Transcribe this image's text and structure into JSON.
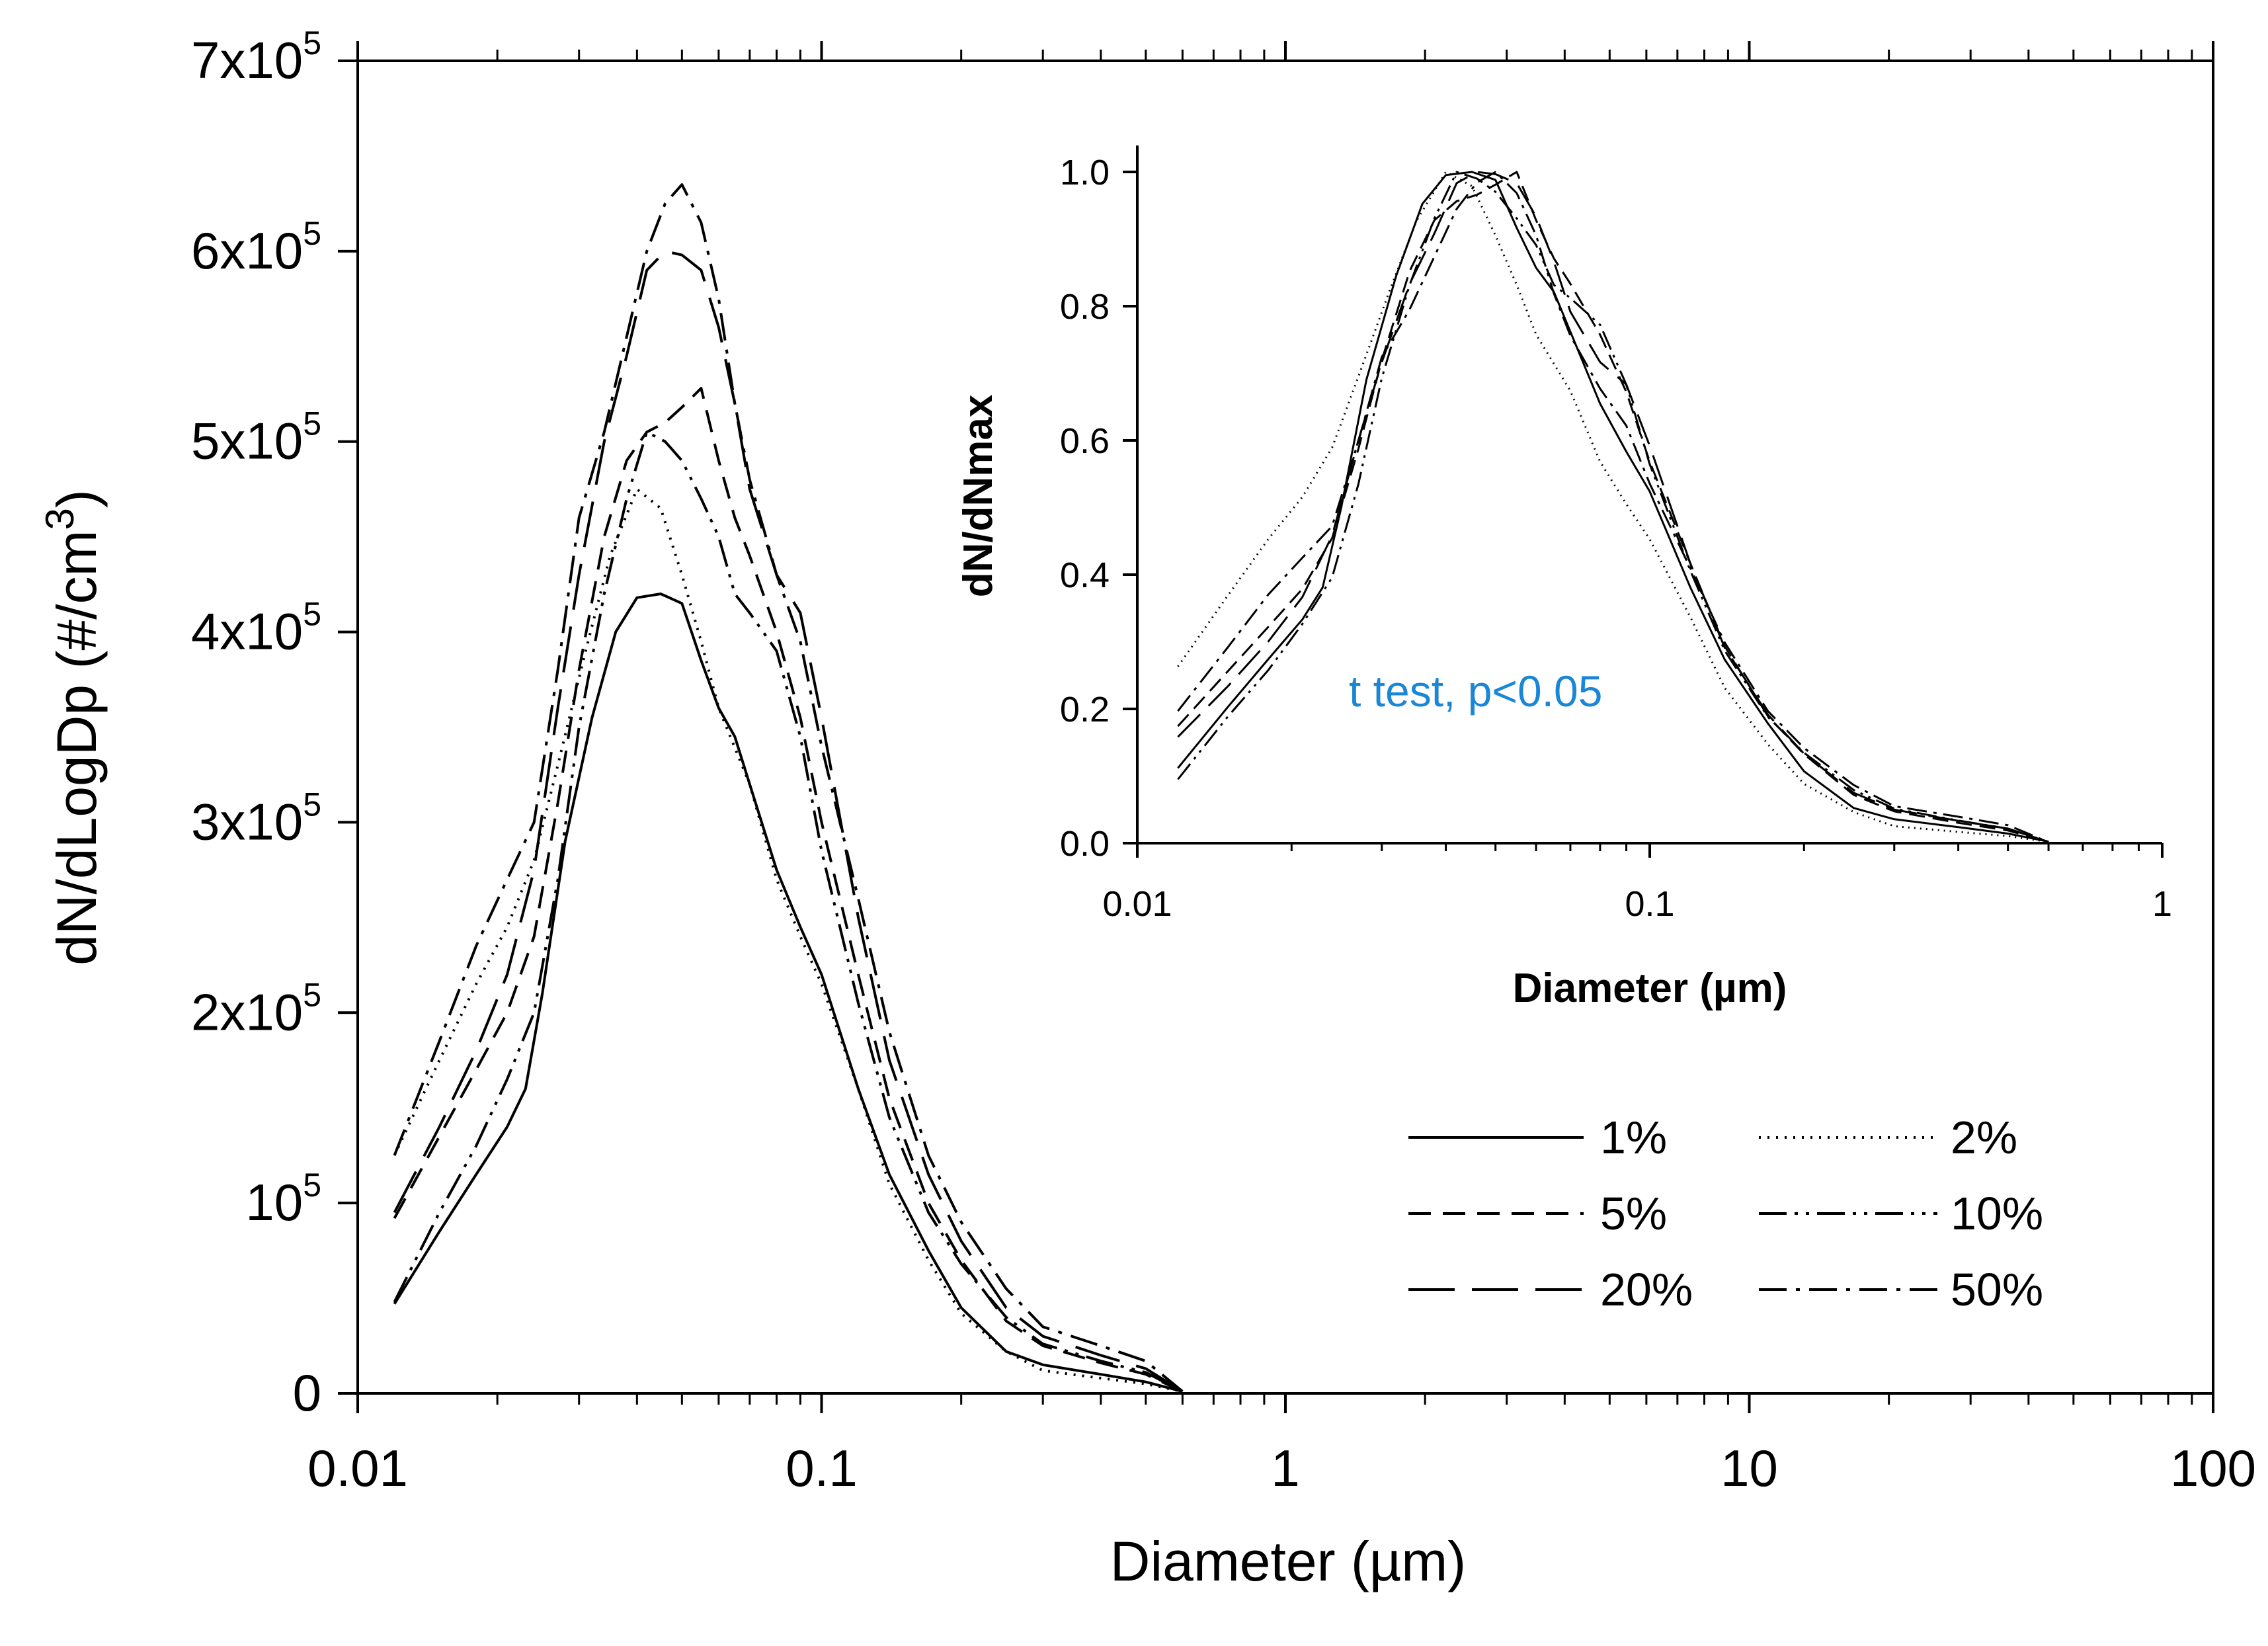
{
  "chart_data": [
    {
      "type": "line",
      "xscale": "log",
      "xlabel": "Diameter (µm)",
      "ylabel": "dN/dLogDp (#/cm3)",
      "ylabel_parts": {
        "main": "dN/dLogDp (#/cm",
        "superscript": "3",
        "end": ")"
      },
      "xlim": [
        0.01,
        100
      ],
      "ylim": [
        0,
        700000
      ],
      "x_ticks": [
        {
          "value": 0.01,
          "label": "0.01"
        },
        {
          "value": 0.1,
          "label": "0.1"
        },
        {
          "value": 1,
          "label": "1"
        },
        {
          "value": 10,
          "label": "10"
        },
        {
          "value": 100,
          "label": "100"
        }
      ],
      "y_ticks": [
        {
          "value": 0,
          "label": "0",
          "base": "0",
          "exp": ""
        },
        {
          "value": 100000,
          "label": "10^5",
          "base": "10",
          "exp": "5"
        },
        {
          "value": 200000,
          "label": "2x10^5",
          "base": "2x10",
          "exp": "5"
        },
        {
          "value": 300000,
          "label": "3x10^5",
          "base": "3x10",
          "exp": "5"
        },
        {
          "value": 400000,
          "label": "4x10^5",
          "base": "4x10",
          "exp": "5"
        },
        {
          "value": 500000,
          "label": "5x10^5",
          "base": "5x10",
          "exp": "5"
        },
        {
          "value": 600000,
          "label": "6x10^5",
          "base": "6x10",
          "exp": "5"
        },
        {
          "value": 700000,
          "label": "7x10^5",
          "base": "7x10",
          "exp": "5"
        }
      ],
      "grid": false,
      "legend": {
        "position": "bottom-right",
        "columns": 2
      },
      "series": [
        {
          "name": "1%",
          "dash": "solid",
          "peak": 420000,
          "x": [
            0.012,
            0.015,
            0.018,
            0.021,
            0.023,
            0.025,
            0.028,
            0.032,
            0.036,
            0.04,
            0.045,
            0.05,
            0.055,
            0.06,
            0.065,
            0.07,
            0.08,
            0.09,
            0.1,
            0.12,
            0.14,
            0.17,
            0.2,
            0.25,
            0.3,
            0.4,
            0.5,
            0.6
          ],
          "y": [
            47000,
            85000,
            115000,
            140000,
            160000,
            210000,
            290000,
            355000,
            400000,
            418000,
            420000,
            415000,
            385000,
            360000,
            345000,
            320000,
            275000,
            245000,
            220000,
            160000,
            115000,
            75000,
            45000,
            22000,
            15000,
            10000,
            6000,
            1000
          ]
        },
        {
          "name": "2%",
          "dash": "dot",
          "peak": 475000,
          "x": [
            0.012,
            0.015,
            0.018,
            0.021,
            0.024,
            0.027,
            0.031,
            0.035,
            0.04,
            0.045,
            0.05,
            0.055,
            0.06,
            0.07,
            0.08,
            0.09,
            0.1,
            0.12,
            0.14,
            0.17,
            0.2,
            0.25,
            0.3,
            0.4,
            0.5,
            0.6
          ],
          "y": [
            125000,
            175000,
            215000,
            245000,
            280000,
            330000,
            390000,
            440000,
            475000,
            465000,
            430000,
            395000,
            360000,
            320000,
            270000,
            240000,
            215000,
            160000,
            110000,
            70000,
            42000,
            22000,
            12000,
            8000,
            5000,
            1000
          ]
        },
        {
          "name": "5%",
          "dash": "dash",
          "peak": 530000,
          "x": [
            0.012,
            0.015,
            0.018,
            0.021,
            0.024,
            0.027,
            0.03,
            0.034,
            0.038,
            0.042,
            0.046,
            0.05,
            0.055,
            0.06,
            0.065,
            0.07,
            0.08,
            0.09,
            0.1,
            0.12,
            0.14,
            0.17,
            0.2,
            0.25,
            0.3,
            0.4,
            0.5,
            0.6
          ],
          "y": [
            92000,
            135000,
            170000,
            200000,
            240000,
            310000,
            380000,
            450000,
            490000,
            505000,
            510000,
            518000,
            528000,
            490000,
            460000,
            440000,
            400000,
            355000,
            300000,
            220000,
            155000,
            100000,
            70000,
            38000,
            25000,
            16000,
            10000,
            1000
          ]
        },
        {
          "name": "10%",
          "dash": "dashdotdot",
          "peak": 510000,
          "x": [
            0.012,
            0.015,
            0.018,
            0.021,
            0.024,
            0.027,
            0.03,
            0.034,
            0.038,
            0.042,
            0.046,
            0.05,
            0.055,
            0.06,
            0.065,
            0.07,
            0.08,
            0.09,
            0.1,
            0.12,
            0.14,
            0.17,
            0.2,
            0.25,
            0.3,
            0.4,
            0.5,
            0.6
          ],
          "y": [
            48000,
            95000,
            130000,
            165000,
            200000,
            270000,
            350000,
            420000,
            470000,
            505000,
            500000,
            490000,
            470000,
            450000,
            420000,
            410000,
            390000,
            345000,
            285000,
            205000,
            145000,
            95000,
            68000,
            40000,
            26000,
            17000,
            11000,
            1000
          ]
        },
        {
          "name": "20%",
          "dash": "longdash",
          "peak": 600000,
          "x": [
            0.012,
            0.015,
            0.018,
            0.021,
            0.024,
            0.027,
            0.03,
            0.034,
            0.038,
            0.042,
            0.046,
            0.05,
            0.055,
            0.06,
            0.065,
            0.07,
            0.08,
            0.09,
            0.1,
            0.12,
            0.14,
            0.17,
            0.2,
            0.25,
            0.3,
            0.4,
            0.5,
            0.6
          ],
          "y": [
            95000,
            140000,
            180000,
            220000,
            275000,
            360000,
            430000,
            500000,
            545000,
            590000,
            600000,
            598000,
            590000,
            560000,
            520000,
            475000,
            430000,
            410000,
            355000,
            250000,
            175000,
            115000,
            80000,
            45000,
            30000,
            20000,
            13000,
            1000
          ]
        },
        {
          "name": "50%",
          "dash": "dashdot",
          "peak": 635000,
          "x": [
            0.012,
            0.015,
            0.018,
            0.021,
            0.024,
            0.027,
            0.03,
            0.034,
            0.038,
            0.042,
            0.046,
            0.05,
            0.055,
            0.06,
            0.065,
            0.07,
            0.08,
            0.09,
            0.1,
            0.12,
            0.14,
            0.17,
            0.2,
            0.25,
            0.3,
            0.4,
            0.5,
            0.6
          ],
          "y": [
            125000,
            185000,
            235000,
            270000,
            300000,
            380000,
            460000,
            505000,
            555000,
            600000,
            625000,
            635000,
            615000,
            575000,
            520000,
            480000,
            430000,
            395000,
            340000,
            260000,
            190000,
            125000,
            90000,
            55000,
            35000,
            25000,
            17000,
            1000
          ]
        }
      ]
    },
    {
      "type": "line",
      "xscale": "log",
      "xlabel": "Diameter (µm)",
      "ylabel": "dN/dNmax",
      "xlim": [
        0.01,
        1
      ],
      "ylim": [
        0,
        1.0
      ],
      "x_ticks": [
        {
          "value": 0.01,
          "label": "0.01"
        },
        {
          "value": 0.1,
          "label": "0.1"
        },
        {
          "value": 1,
          "label": "1"
        }
      ],
      "y_ticks": [
        {
          "value": 0.0,
          "label": "0.0"
        },
        {
          "value": 0.2,
          "label": "0.2"
        },
        {
          "value": 0.4,
          "label": "0.4"
        },
        {
          "value": 0.6,
          "label": "0.6"
        },
        {
          "value": 0.8,
          "label": "0.8"
        },
        {
          "value": 1.0,
          "label": "1.0"
        }
      ],
      "grid": false,
      "normalized_from": "main",
      "annotation": {
        "text": "t test, p<0.05",
        "color": "#1a86d6"
      }
    }
  ]
}
